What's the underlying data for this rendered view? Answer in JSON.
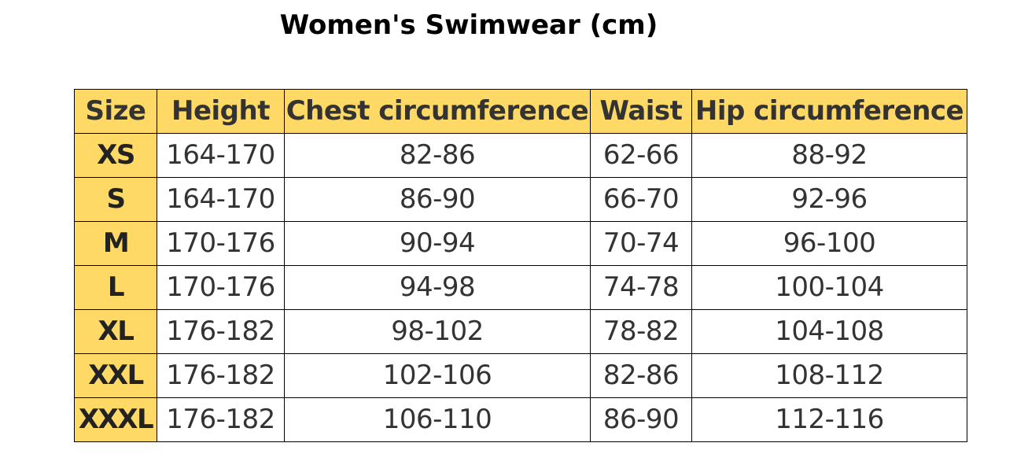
{
  "title": "Women's Swimwear (cm)",
  "colors": {
    "header_fill": "#FFD966",
    "size_column_fill": "#FFD966",
    "cell_fill": "#FFFFFF",
    "border": "#000000"
  },
  "table": {
    "columns": [
      "Size",
      "Height",
      "Chest circumference",
      "Waist",
      "Hip circumference"
    ],
    "rows": [
      {
        "size": "XS",
        "height": "164-170",
        "chest": "82-86",
        "waist": "62-66",
        "hip": "88-92"
      },
      {
        "size": "S",
        "height": "164-170",
        "chest": "86-90",
        "waist": "66-70",
        "hip": "92-96"
      },
      {
        "size": "M",
        "height": "170-176",
        "chest": "90-94",
        "waist": "70-74",
        "hip": "96-100"
      },
      {
        "size": "L",
        "height": "170-176",
        "chest": "94-98",
        "waist": "74-78",
        "hip": "100-104"
      },
      {
        "size": "XL",
        "height": "176-182",
        "chest": "98-102",
        "waist": "78-82",
        "hip": "104-108"
      },
      {
        "size": "XXL",
        "height": "176-182",
        "chest": "102-106",
        "waist": "82-86",
        "hip": "108-112"
      },
      {
        "size": "XXXL",
        "height": "176-182",
        "chest": "106-110",
        "waist": "86-90",
        "hip": "112-116"
      }
    ]
  }
}
